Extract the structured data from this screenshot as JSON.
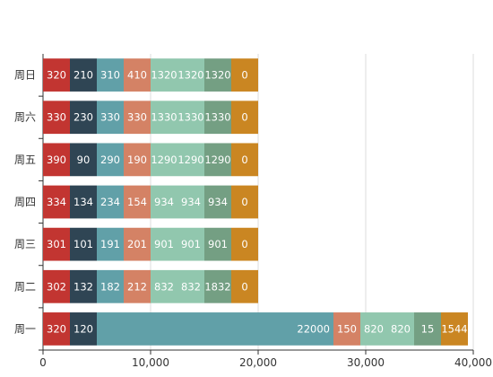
{
  "chart_data": {
    "type": "bar",
    "orientation": "horizontal",
    "stacked": true,
    "categories": [
      "周一",
      "周二",
      "周三",
      "周四",
      "周五",
      "周六",
      "周日"
    ],
    "series": [
      {
        "values": [
          320,
          302,
          301,
          334,
          390,
          330,
          320
        ]
      },
      {
        "values": [
          120,
          132,
          101,
          134,
          90,
          230,
          210
        ]
      },
      {
        "values": [
          22000,
          182,
          191,
          234,
          290,
          330,
          310
        ]
      },
      {
        "values": [
          150,
          212,
          201,
          154,
          190,
          330,
          410
        ]
      },
      {
        "values": [
          820,
          832,
          901,
          934,
          1290,
          1330,
          1320
        ]
      },
      {
        "values": [
          820,
          832,
          901,
          934,
          1290,
          1330,
          1320
        ]
      },
      {
        "values": [
          15,
          1832,
          901,
          934,
          1290,
          1330,
          1320
        ]
      },
      {
        "values": [
          1544,
          0,
          0,
          0,
          0,
          0,
          0
        ]
      }
    ],
    "xlim": [
      0,
      40000
    ],
    "x_ticks": [
      "0",
      "10,000",
      "20,000",
      "30,000",
      "40,000"
    ],
    "grid": true,
    "legend": "none"
  },
  "colors": [
    "#c23531",
    "#2f4554",
    "#61a0a8",
    "#d48265",
    "#91c7ae",
    "#91c7ae",
    "#749f83",
    "#ca8622"
  ]
}
